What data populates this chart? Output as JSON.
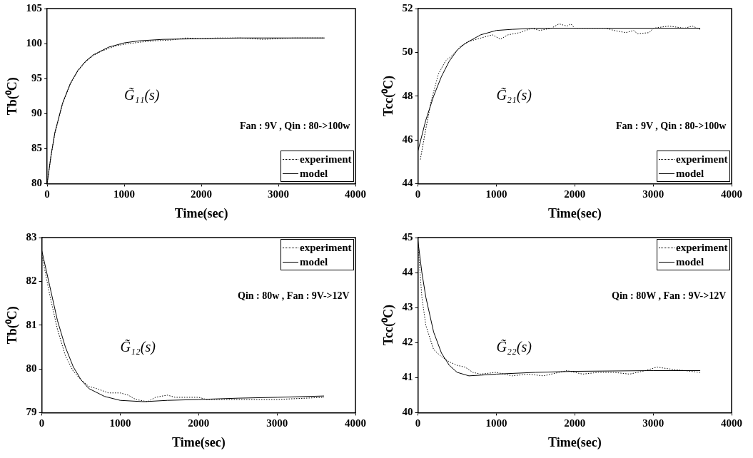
{
  "chart_data": [
    {
      "type": "line",
      "xlabel": "Time(sec)",
      "ylabel": "Tb(⁰C)",
      "xlim": [
        0,
        4000
      ],
      "xticks": [
        0,
        1000,
        2000,
        3000,
        4000
      ],
      "ylim": [
        80,
        105
      ],
      "yticks": [
        80,
        85,
        90,
        95,
        100,
        105
      ],
      "grid": false,
      "legend": "bottom right",
      "marker": "none",
      "annotations": [
        "G̃₁₁(s)",
        "Fan : 9V , Qin : 80->100w"
      ],
      "series": [
        {
          "name": "experiment",
          "color": "#000000",
          "line_style": "dotted",
          "x": [
            0,
            50,
            100,
            200,
            300,
            400,
            500,
            600,
            700,
            800,
            900,
            1000,
            1200,
            1400,
            1600,
            1800,
            2000,
            2200,
            2500,
            2800,
            3000,
            3200,
            3400,
            3600
          ],
          "values": [
            80.2,
            84,
            87.2,
            91.4,
            94.2,
            96.1,
            97.4,
            98.3,
            98.9,
            99.3,
            99.7,
            99.9,
            100.2,
            100.4,
            100.5,
            100.8,
            100.7,
            100.8,
            100.8,
            100.6,
            100.7,
            100.8,
            100.8,
            100.8
          ]
        },
        {
          "name": "model",
          "color": "#000000",
          "line_style": "solid",
          "x": [
            0,
            50,
            100,
            200,
            300,
            400,
            500,
            600,
            800,
            1000,
            1200,
            1500,
            2000,
            2500,
            3000,
            3600
          ],
          "values": [
            80,
            84,
            87.3,
            91.5,
            94.3,
            96.2,
            97.5,
            98.4,
            99.5,
            100.1,
            100.4,
            100.6,
            100.7,
            100.8,
            100.8,
            100.8
          ]
        }
      ]
    },
    {
      "type": "line",
      "xlabel": "Time(sec)",
      "ylabel": "Tcc(⁰C)",
      "xlim": [
        0,
        4000
      ],
      "xticks": [
        0,
        1000,
        2000,
        3000,
        4000
      ],
      "ylim": [
        44,
        52
      ],
      "yticks": [
        44,
        46,
        48,
        50,
        52
      ],
      "grid": false,
      "legend": "bottom right",
      "marker": "none",
      "annotations": [
        "G̃₂₁(s)",
        "Fan : 9V , Qin : 80->100w"
      ],
      "series": [
        {
          "name": "experiment",
          "color": "#000000",
          "line_style": "dotted",
          "x": [
            30,
            100,
            170,
            260,
            350,
            450,
            550,
            650,
            750,
            850,
            950,
            1050,
            1150,
            1300,
            1450,
            1550,
            1700,
            1800,
            1900,
            1950,
            2000,
            2200,
            2400,
            2500,
            2650,
            2750,
            2800,
            2950,
            3000,
            3200,
            3400,
            3500,
            3600
          ],
          "values": [
            45.1,
            46.5,
            47.8,
            49,
            49.6,
            49.9,
            50.3,
            50.5,
            50.6,
            50.7,
            50.8,
            50.6,
            50.8,
            50.9,
            51.1,
            51,
            51.1,
            51.3,
            51.2,
            51.3,
            51.1,
            51.1,
            51.1,
            51,
            50.9,
            51,
            50.85,
            50.9,
            51.1,
            51.2,
            51.1,
            51.2,
            51.05
          ]
        },
        {
          "name": "model",
          "color": "#000000",
          "line_style": "solid",
          "x": [
            0,
            100,
            200,
            300,
            400,
            500,
            600,
            800,
            1000,
            1200,
            1500,
            3600
          ],
          "values": [
            45.5,
            46.9,
            48,
            48.9,
            49.6,
            50.1,
            50.4,
            50.8,
            51,
            51.05,
            51.1,
            51.1
          ]
        }
      ]
    },
    {
      "type": "line",
      "xlabel": "Time(sec)",
      "ylabel": "Tb(⁰C)",
      "xlim": [
        0,
        4000
      ],
      "xticks": [
        0,
        1000,
        2000,
        3000,
        4000
      ],
      "ylim": [
        79,
        83
      ],
      "yticks": [
        79,
        80,
        81,
        82,
        83
      ],
      "grid": false,
      "legend": "top right",
      "marker": "none",
      "annotations": [
        "G̃₁₂(s)",
        "Qin : 80w , Fan : 9V->12V"
      ],
      "series": [
        {
          "name": "experiment",
          "color": "#000000",
          "line_style": "dotted",
          "x": [
            0,
            100,
            200,
            300,
            400,
            500,
            600,
            700,
            850,
            1000,
            1100,
            1200,
            1350,
            1450,
            1600,
            1700,
            2000,
            2100,
            2500,
            3000,
            3600
          ],
          "values": [
            82.6,
            81.7,
            80.9,
            80.3,
            79.95,
            79.75,
            79.6,
            79.55,
            79.45,
            79.45,
            79.4,
            79.3,
            79.25,
            79.35,
            79.4,
            79.35,
            79.35,
            79.3,
            79.3,
            79.3,
            79.35
          ]
        },
        {
          "name": "model",
          "color": "#000000",
          "line_style": "solid",
          "x": [
            0,
            100,
            200,
            300,
            400,
            500,
            600,
            800,
            1000,
            1300,
            1600,
            2000,
            2500,
            3000,
            3600
          ],
          "values": [
            82.7,
            81.9,
            81.1,
            80.5,
            80.05,
            79.75,
            79.55,
            79.37,
            79.28,
            79.25,
            79.28,
            79.3,
            79.33,
            79.35,
            79.38
          ]
        }
      ]
    },
    {
      "type": "line",
      "xlabel": "Time(sec)",
      "ylabel": "Tcc(⁰C)",
      "xlim": [
        0,
        4000
      ],
      "xticks": [
        0,
        1000,
        2000,
        3000,
        4000
      ],
      "ylim": [
        40,
        45
      ],
      "yticks": [
        40,
        41,
        42,
        43,
        44,
        45
      ],
      "grid": false,
      "legend": "top right",
      "marker": "none",
      "annotations": [
        "G̃₂₂(s)",
        "Qin : 80W , Fan : 9V->12V"
      ],
      "series": [
        {
          "name": "experiment",
          "color": "#000000",
          "line_style": "dotted",
          "x": [
            0,
            50,
            100,
            200,
            300,
            400,
            500,
            600,
            700,
            800,
            1000,
            1200,
            1400,
            1600,
            1800,
            1900,
            2100,
            2300,
            2500,
            2700,
            2900,
            3050,
            3200,
            3400,
            3600
          ],
          "values": [
            44.8,
            43.3,
            42.5,
            41.8,
            41.6,
            41.45,
            41.35,
            41.3,
            41.15,
            41.1,
            41.15,
            41.05,
            41.1,
            41.05,
            41.15,
            41.2,
            41.1,
            41.15,
            41.15,
            41.1,
            41.2,
            41.3,
            41.25,
            41.2,
            41.15
          ]
        },
        {
          "name": "model",
          "color": "#000000",
          "line_style": "solid",
          "x": [
            0,
            50,
            100,
            200,
            300,
            400,
            500,
            650,
            800,
            1000,
            1500,
            2000,
            3000,
            3600
          ],
          "values": [
            44.9,
            44,
            43.3,
            42.3,
            41.7,
            41.35,
            41.15,
            41.05,
            41.07,
            41.1,
            41.15,
            41.18,
            41.2,
            41.2
          ]
        }
      ]
    }
  ]
}
